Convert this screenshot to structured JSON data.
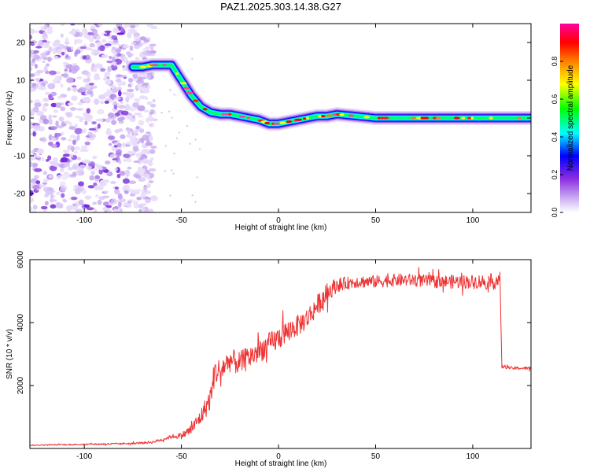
{
  "figure_title": "PAZ1.2025.303.14.38.G27",
  "chart_data": [
    {
      "type": "heatmap",
      "title": "PAZ1.2025.303.14.38.G27",
      "xlabel": "Height of straight line (km)",
      "ylabel": "Frequency (Hz)",
      "xlim": [
        -128,
        130
      ],
      "ylim": [
        -25,
        25
      ],
      "x_ticks": [
        -100,
        -50,
        0,
        50,
        100
      ],
      "x_tick_labels": [
        "-100",
        "-50",
        "0",
        "50",
        "100"
      ],
      "y_ticks": [
        -20,
        -10,
        0,
        10,
        20
      ],
      "y_tick_labels": [
        "-20",
        "-10",
        "0",
        "10",
        "20"
      ],
      "ridge": {
        "x": [
          -75,
          -70,
          -65,
          -60,
          -55,
          -50,
          -45,
          -40,
          -35,
          -30,
          -25,
          -20,
          -15,
          -10,
          -5,
          0,
          5,
          10,
          15,
          20,
          25,
          30,
          40,
          50,
          60,
          70,
          80,
          90,
          100,
          110,
          120,
          130
        ],
        "y": [
          13.5,
          13.5,
          14,
          14,
          14,
          10,
          6,
          3,
          1.5,
          1,
          1,
          0.5,
          0,
          -0.5,
          -1.5,
          -1.5,
          -1,
          -0.5,
          0,
          0.5,
          0.5,
          1,
          0.5,
          0,
          0,
          0,
          0,
          0,
          0,
          0,
          0,
          0
        ]
      },
      "noise_region_x": [
        -128,
        -70
      ],
      "colorbar": {
        "label": "Normalized spectral amplitude",
        "range": [
          0,
          1
        ],
        "ticks": [
          0.0,
          0.2,
          0.4,
          0.6,
          0.8
        ],
        "tick_labels": [
          "0.0",
          "0.2",
          "0.4",
          "0.6",
          "0.8"
        ],
        "colors": [
          "#ffffff",
          "#8a2be2",
          "#0000ff",
          "#00ffff",
          "#00ff00",
          "#ffff00",
          "#ff8000",
          "#ff0000",
          "#ff00a0"
        ]
      }
    },
    {
      "type": "line",
      "xlabel": "Height of straight line (km)",
      "ylabel": "SNR (10 * v/v)",
      "xlim": [
        -128,
        130
      ],
      "ylim": [
        0,
        6000
      ],
      "x_ticks": [
        -100,
        -50,
        0,
        50,
        100
      ],
      "x_tick_labels": [
        "-100",
        "-50",
        "0",
        "50",
        "100"
      ],
      "y_ticks": [
        2000,
        4000,
        6000
      ],
      "y_tick_labels": [
        "2000",
        "4000",
        "6000"
      ],
      "color": "#ee3333",
      "series": [
        {
          "name": "SNR",
          "x": [
            -128,
            -110,
            -90,
            -75,
            -65,
            -60,
            -55,
            -50,
            -45,
            -40,
            -35,
            -33,
            -30,
            -25,
            -20,
            -15,
            -10,
            -5,
            0,
            5,
            10,
            15,
            20,
            25,
            30,
            35,
            40,
            45,
            50,
            60,
            70,
            80,
            90,
            100,
            105,
            110,
            114,
            115,
            116,
            120,
            125,
            130
          ],
          "y": [
            100,
            120,
            140,
            160,
            200,
            280,
            380,
            400,
            600,
            1000,
            1600,
            2400,
            2500,
            2800,
            2700,
            2900,
            3100,
            3300,
            3500,
            3750,
            3900,
            4150,
            4550,
            4950,
            5200,
            5250,
            5300,
            5300,
            5300,
            5350,
            5350,
            5300,
            5300,
            5300,
            5300,
            5300,
            5350,
            2600,
            2600,
            2550,
            2550,
            2550
          ],
          "noise_amplitude": [
            15,
            20,
            25,
            30,
            40,
            50,
            60,
            100,
            180,
            260,
            380,
            420,
            400,
            380,
            380,
            380,
            380,
            380,
            380,
            340,
            340,
            340,
            340,
            300,
            240,
            200,
            200,
            200,
            200,
            200,
            200,
            200,
            220,
            220,
            240,
            260,
            260,
            60,
            60,
            50,
            50,
            50
          ]
        }
      ]
    }
  ]
}
